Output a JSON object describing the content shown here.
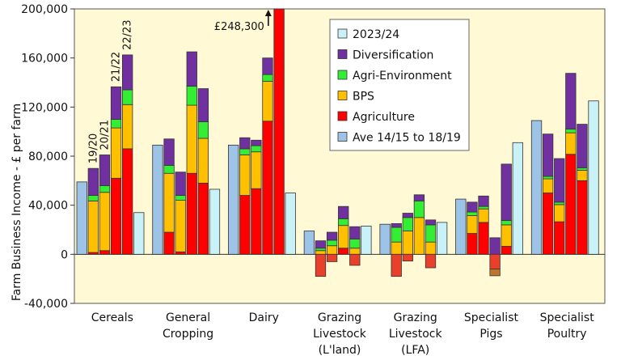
{
  "chart_data": {
    "type": "bar",
    "subtype": "stacked-bar-with-reference-bars",
    "ylabel": "Farm Business Income - £ per farm",
    "ylim": [
      -40000,
      200000
    ],
    "yticks": [
      -40000,
      0,
      40000,
      80000,
      120000,
      160000,
      200000
    ],
    "ytick_labels": [
      "-40,000",
      "0",
      "40,000",
      "80,000",
      "120,000",
      "160,000",
      "200,000"
    ],
    "grid": false,
    "legend_position": "top-right",
    "legend": [
      {
        "key": "ref2324",
        "label": "2023/24"
      },
      {
        "key": "diversification",
        "label": "Diversification"
      },
      {
        "key": "agri_env",
        "label": "Agri-Environment"
      },
      {
        "key": "bps",
        "label": "BPS"
      },
      {
        "key": "agriculture",
        "label": "Agriculture"
      },
      {
        "key": "ave",
        "label": "Ave 14/15 to 18/19"
      }
    ],
    "colors": {
      "ave": "#9dc3e6",
      "agriculture": "#ff0000",
      "agriculture_negative": "#e8402a",
      "bps": "#ffc000",
      "agri_env": "#33ee33",
      "diversification": "#7030a0",
      "ref2324": "#c9f1f8",
      "plot_bg": "#fff9d6"
    },
    "stack_order": [
      "agriculture",
      "bps",
      "agri_env",
      "diversification"
    ],
    "year_labels": [
      "19/20",
      "20/21",
      "21/22",
      "22/23"
    ],
    "annotation": "£248,300",
    "categories": [
      {
        "label": [
          "Cereals"
        ],
        "ave": 59000,
        "ref2324": 34000,
        "years": [
          {
            "agriculture": 1500,
            "bps": 42000,
            "agri_env": 4500,
            "diversification": 22000
          },
          {
            "agriculture": 3000,
            "bps": 47500,
            "agri_env": 5500,
            "diversification": 25000
          },
          {
            "agriculture": 62000,
            "bps": 41000,
            "agri_env": 7000,
            "diversification": 26500
          },
          {
            "agriculture": 86000,
            "bps": 36000,
            "agri_env": 12000,
            "diversification": 28500
          }
        ]
      },
      {
        "label": [
          "General",
          "Cropping"
        ],
        "ave": 89000,
        "ref2324": 53000,
        "years": [
          {
            "agriculture": 18000,
            "bps": 48000,
            "agri_env": 6500,
            "diversification": 21500
          },
          {
            "agriculture": 2000,
            "bps": 42000,
            "agri_env": 4000,
            "diversification": 19000
          },
          {
            "agriculture": 66000,
            "bps": 55500,
            "agri_env": 15500,
            "diversification": 28000
          },
          {
            "agriculture": 58000,
            "bps": 36500,
            "agri_env": 13500,
            "diversification": 27000
          }
        ]
      },
      {
        "label": [
          "Dairy"
        ],
        "ave": 89000,
        "ref2324": 50000,
        "years": [
          {
            "agriculture": 48000,
            "bps": 33000,
            "agri_env": 5000,
            "diversification": 9000
          },
          {
            "agriculture": 53500,
            "bps": 30000,
            "agri_env": 5000,
            "diversification": 4500
          },
          {
            "agriculture": 108500,
            "bps": 32500,
            "agri_env": 5500,
            "diversification": 13500
          },
          {
            "agriculture": 248300,
            "bps": 0,
            "agri_env": 0,
            "diversification": 0
          }
        ]
      },
      {
        "label": [
          "Grazing",
          "Livestock",
          "(L'land)"
        ],
        "ave": 19000,
        "ref2324": 23000,
        "years": [
          {
            "agriculture": -18000,
            "bps": 3000,
            "agri_env": 2000,
            "diversification": 6000
          },
          {
            "agriculture": -6000,
            "bps": 7000,
            "agri_env": 4500,
            "diversification": 6500
          },
          {
            "agriculture": 5000,
            "bps": 18500,
            "agri_env": 5500,
            "diversification": 10000
          },
          {
            "agriculture": -9000,
            "bps": 5000,
            "agri_env": 7500,
            "diversification": 10000
          }
        ]
      },
      {
        "label": [
          "Grazing",
          "Livestock",
          "(LFA)"
        ],
        "ave": 24500,
        "ref2324": 26000,
        "years": [
          {
            "agriculture": -18000,
            "bps": 10000,
            "agri_env": 12000,
            "diversification": 3000
          },
          {
            "agriculture": -5500,
            "bps": 19000,
            "agri_env": 11000,
            "diversification": 3500
          },
          {
            "agriculture": 0,
            "bps": 30000,
            "agri_env": 13500,
            "diversification": 5000
          },
          {
            "agriculture": -11000,
            "bps": 10000,
            "agri_env": 14000,
            "diversification": 4000
          }
        ]
      },
      {
        "label": [
          "Specialist",
          "Pigs"
        ],
        "ave": 45000,
        "ref2324": 91000,
        "years": [
          {
            "agriculture": 17000,
            "bps": 14500,
            "agri_env": 3000,
            "diversification": 8000
          },
          {
            "agriculture": 26000,
            "bps": 11000,
            "agri_env": 2000,
            "diversification": 8500
          },
          {
            "agriculture": -12000,
            "bps": 0,
            "agri_env": 0,
            "diversification": 13500,
            "other_negative": -5500
          },
          {
            "agriculture": 6500,
            "bps": 17500,
            "agri_env": 3500,
            "diversification": 46000
          }
        ]
      },
      {
        "label": [
          "Specialist",
          "Poultry"
        ],
        "ave": 109000,
        "ref2324": 125000,
        "years": [
          {
            "agriculture": 50000,
            "bps": 11500,
            "agri_env": 2000,
            "diversification": 34500
          },
          {
            "agriculture": 26500,
            "bps": 14000,
            "agri_env": 2000,
            "diversification": 35500
          },
          {
            "agriculture": 81500,
            "bps": 17500,
            "agri_env": 3000,
            "diversification": 45500
          },
          {
            "agriculture": 60000,
            "bps": 8500,
            "agri_env": 2000,
            "diversification": 35500
          }
        ]
      }
    ]
  }
}
